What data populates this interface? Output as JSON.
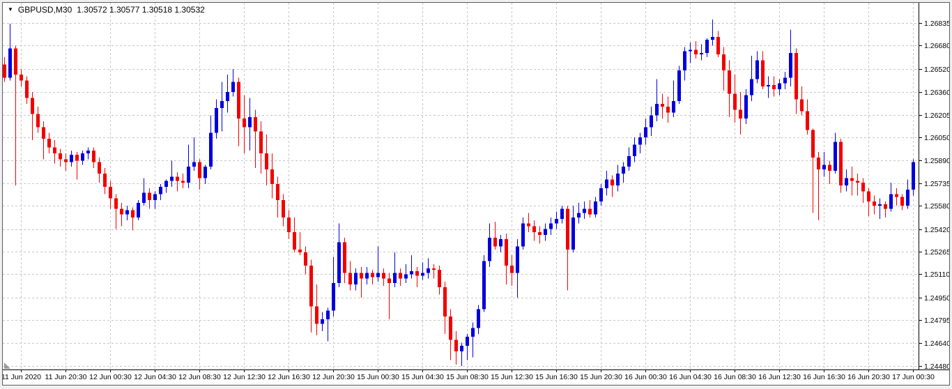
{
  "window": {
    "dropdown_icon": "▼",
    "symbol_period": "GBPUSD,M30",
    "ohlc_text": "1.30572 1.30577 1.30518 1.30532"
  },
  "colors": {
    "bull": "#0000dd",
    "bear": "#f20000",
    "grid": "#c6c6c6",
    "axis_line": "#000000",
    "text": "#000000",
    "background": "#ffffff",
    "frame": "#f0f0f0",
    "frame_border": "#5a5a5a",
    "shift_marker": "#9a9a9a"
  },
  "chart_data": {
    "type": "candlestick",
    "title": "GBPUSD,M30",
    "symbol": "GBPUSD",
    "timeframe": "M30",
    "legend_position": "none",
    "grid": "dashed",
    "y_axis": {
      "top_price": 1.26835,
      "bottom_price": 1.2448,
      "labels": [
        "1.26835",
        "1.26680",
        "1.26520",
        "1.26360",
        "1.26205",
        "1.26050",
        "1.25890",
        "1.25735",
        "1.25580",
        "1.25420",
        "1.25265",
        "1.25110",
        "1.24950",
        "1.24795",
        "1.24640",
        "1.24480"
      ]
    },
    "x_axis": {
      "labels": [
        "11 Jun 2020",
        "11 Jun 20:30",
        "12 Jun 00:30",
        "12 Jun 04:30",
        "12 Jun 08:30",
        "12 Jun 12:30",
        "12 Jun 16:30",
        "12 Jun 20:30",
        "15 Jun 00:30",
        "15 Jun 04:30",
        "15 Jun 08:30",
        "15 Jun 12:30",
        "15 Jun 16:30",
        "15 Jun 20:30",
        "16 Jun 00:30",
        "16 Jun 04:30",
        "16 Jun 08:30",
        "16 Jun 12:30",
        "16 Jun 16:30",
        "16 Jun 20:30",
        "17 Jun 00:30"
      ],
      "first_label_bar_index": 3,
      "bars_per_label": 8
    },
    "candles": [
      [
        1.2655,
        1.266,
        1.2643,
        1.2646
      ],
      [
        1.2646,
        1.2683,
        1.2644,
        1.2666
      ],
      [
        1.2666,
        1.2668,
        1.2572,
        1.2648
      ],
      [
        1.2648,
        1.2652,
        1.264,
        1.2644
      ],
      [
        1.2644,
        1.2647,
        1.2628,
        1.2632
      ],
      [
        1.2632,
        1.2636,
        1.2603,
        1.2621
      ],
      [
        1.2621,
        1.2626,
        1.2608,
        1.2612
      ],
      [
        1.2612,
        1.2616,
        1.259,
        1.2604
      ],
      [
        1.2604,
        1.2608,
        1.2594,
        1.2598
      ],
      [
        1.2598,
        1.2603,
        1.2587,
        1.2594
      ],
      [
        1.2594,
        1.2597,
        1.2585,
        1.259
      ],
      [
        1.259,
        1.2594,
        1.2582,
        1.2588
      ],
      [
        1.2588,
        1.2596,
        1.2585,
        1.2593
      ],
      [
        1.2593,
        1.2595,
        1.2576,
        1.2589
      ],
      [
        1.2589,
        1.2596,
        1.2586,
        1.2594
      ],
      [
        1.2594,
        1.2598,
        1.259,
        1.2596
      ],
      [
        1.2596,
        1.2598,
        1.2584,
        1.2588
      ],
      [
        1.2588,
        1.2591,
        1.2574,
        1.258
      ],
      [
        1.258,
        1.2584,
        1.2566,
        1.2571
      ],
      [
        1.2571,
        1.2575,
        1.2556,
        1.2563
      ],
      [
        1.2563,
        1.2566,
        1.2542,
        1.2556
      ],
      [
        1.2556,
        1.256,
        1.2544,
        1.2552
      ],
      [
        1.2552,
        1.2558,
        1.2548,
        1.2555
      ],
      [
        1.2555,
        1.2557,
        1.2541,
        1.255
      ],
      [
        1.255,
        1.2562,
        1.2548,
        1.256
      ],
      [
        1.256,
        1.2577,
        1.2558,
        1.2567
      ],
      [
        1.2567,
        1.257,
        1.2556,
        1.2562
      ],
      [
        1.2562,
        1.2568,
        1.2556,
        1.2566
      ],
      [
        1.2566,
        1.2573,
        1.2562,
        1.2571
      ],
      [
        1.2571,
        1.2576,
        1.2567,
        1.2575
      ],
      [
        1.2575,
        1.2589,
        1.2571,
        1.2578
      ],
      [
        1.2578,
        1.2581,
        1.2568,
        1.2575
      ],
      [
        1.2575,
        1.258,
        1.257,
        1.2574
      ],
      [
        1.2574,
        1.26,
        1.257,
        1.2585
      ],
      [
        1.2585,
        1.2605,
        1.2582,
        1.2588
      ],
      [
        1.2588,
        1.259,
        1.2569,
        1.2577
      ],
      [
        1.2577,
        1.2586,
        1.2573,
        1.2585
      ],
      [
        1.2585,
        1.262,
        1.2583,
        1.2608
      ],
      [
        1.2608,
        1.2631,
        1.2604,
        1.2625
      ],
      [
        1.2625,
        1.2643,
        1.2609,
        1.263
      ],
      [
        1.263,
        1.2648,
        1.2622,
        1.2636
      ],
      [
        1.2636,
        1.2652,
        1.2633,
        1.2643
      ],
      [
        1.2643,
        1.2646,
        1.2599,
        1.2618
      ],
      [
        1.2618,
        1.2634,
        1.2594,
        1.2612
      ],
      [
        1.2612,
        1.2632,
        1.2596,
        1.2619
      ],
      [
        1.2619,
        1.2624,
        1.2584,
        1.2609
      ],
      [
        1.2609,
        1.2616,
        1.258,
        1.2594
      ],
      [
        1.2594,
        1.2607,
        1.2572,
        1.2583
      ],
      [
        1.2583,
        1.2594,
        1.2563,
        1.2573
      ],
      [
        1.2573,
        1.2578,
        1.255,
        1.2562
      ],
      [
        1.2562,
        1.2566,
        1.2544,
        1.255
      ],
      [
        1.255,
        1.2555,
        1.2535,
        1.254
      ],
      [
        1.254,
        1.255,
        1.2526,
        1.2528
      ],
      [
        1.2528,
        1.254,
        1.2524,
        1.2526
      ],
      [
        1.2526,
        1.253,
        1.2511,
        1.2517
      ],
      [
        1.2517,
        1.2521,
        1.2471,
        1.2489
      ],
      [
        1.2489,
        1.2504,
        1.2469,
        1.2477
      ],
      [
        1.2477,
        1.2485,
        1.2472,
        1.248
      ],
      [
        1.248,
        1.2488,
        1.2465,
        1.2486
      ],
      [
        1.2486,
        1.2523,
        1.2482,
        1.2505
      ],
      [
        1.2505,
        1.2546,
        1.2502,
        1.2533
      ],
      [
        1.2533,
        1.2536,
        1.2505,
        1.2512
      ],
      [
        1.2512,
        1.252,
        1.25,
        1.2504
      ],
      [
        1.2504,
        1.2515,
        1.25,
        1.2512
      ],
      [
        1.2512,
        1.2516,
        1.2495,
        1.2508
      ],
      [
        1.2508,
        1.2516,
        1.2504,
        1.2512
      ],
      [
        1.2512,
        1.2514,
        1.2504,
        1.2509
      ],
      [
        1.2509,
        1.253,
        1.2506,
        1.2512
      ],
      [
        1.2512,
        1.2515,
        1.2503,
        1.2508
      ],
      [
        1.2508,
        1.2512,
        1.248,
        1.2505
      ],
      [
        1.2505,
        1.2526,
        1.2502,
        1.2512
      ],
      [
        1.2512,
        1.2515,
        1.2503,
        1.2508
      ],
      [
        1.2508,
        1.2518,
        1.2505,
        1.2511
      ],
      [
        1.2511,
        1.2524,
        1.2508,
        1.2513
      ],
      [
        1.2513,
        1.2516,
        1.2502,
        1.251
      ],
      [
        1.251,
        1.2519,
        1.2507,
        1.2512
      ],
      [
        1.2512,
        1.2522,
        1.2508,
        1.2515
      ],
      [
        1.2515,
        1.2518,
        1.2508,
        1.2514
      ],
      [
        1.2514,
        1.2517,
        1.2497,
        1.2502
      ],
      [
        1.2502,
        1.2506,
        1.247,
        1.2482
      ],
      [
        1.2482,
        1.2487,
        1.2452,
        1.2466
      ],
      [
        1.2466,
        1.2472,
        1.2449,
        1.2458
      ],
      [
        1.2458,
        1.2464,
        1.2448,
        1.2462
      ],
      [
        1.2462,
        1.247,
        1.2452,
        1.2468
      ],
      [
        1.2468,
        1.2478,
        1.2454,
        1.2474
      ],
      [
        1.2474,
        1.249,
        1.247,
        1.2487
      ],
      [
        1.2487,
        1.2524,
        1.2485,
        1.252
      ],
      [
        1.252,
        1.2546,
        1.2516,
        1.2536
      ],
      [
        1.2536,
        1.2547,
        1.2528,
        1.253
      ],
      [
        1.253,
        1.2538,
        1.2526,
        1.2535
      ],
      [
        1.2535,
        1.2539,
        1.2504,
        1.2517
      ],
      [
        1.2517,
        1.2524,
        1.2503,
        1.2512
      ],
      [
        1.2512,
        1.2535,
        1.2495,
        1.253
      ],
      [
        1.253,
        1.255,
        1.2528,
        1.2546
      ],
      [
        1.2546,
        1.2553,
        1.254,
        1.2544
      ],
      [
        1.2544,
        1.2548,
        1.2534,
        1.254
      ],
      [
        1.254,
        1.2544,
        1.2532,
        1.2538
      ],
      [
        1.2538,
        1.2546,
        1.2534,
        1.2542
      ],
      [
        1.2542,
        1.255,
        1.2538,
        1.2546
      ],
      [
        1.2546,
        1.2554,
        1.2542,
        1.2549
      ],
      [
        1.2549,
        1.2558,
        1.2546,
        1.2556
      ],
      [
        1.2556,
        1.2558,
        1.25,
        1.2528
      ],
      [
        1.2528,
        1.2558,
        1.2526,
        1.255
      ],
      [
        1.255,
        1.256,
        1.2546,
        1.2553
      ],
      [
        1.2553,
        1.2561,
        1.2549,
        1.2556
      ],
      [
        1.2556,
        1.2562,
        1.255,
        1.2552
      ],
      [
        1.2552,
        1.2564,
        1.255,
        1.2561
      ],
      [
        1.2561,
        1.2573,
        1.2558,
        1.257
      ],
      [
        1.257,
        1.2582,
        1.2565,
        1.2576
      ],
      [
        1.2576,
        1.2579,
        1.2564,
        1.2572
      ],
      [
        1.2572,
        1.2586,
        1.2568,
        1.258
      ],
      [
        1.258,
        1.2588,
        1.2574,
        1.2585
      ],
      [
        1.2585,
        1.2598,
        1.2582,
        1.2592
      ],
      [
        1.2592,
        1.2605,
        1.2588,
        1.26
      ],
      [
        1.26,
        1.2608,
        1.2594,
        1.2605
      ],
      [
        1.2605,
        1.2618,
        1.26,
        1.2612
      ],
      [
        1.2612,
        1.2626,
        1.2606,
        1.262
      ],
      [
        1.262,
        1.2645,
        1.2616,
        1.2628
      ],
      [
        1.2628,
        1.2635,
        1.2618,
        1.2626
      ],
      [
        1.2626,
        1.2633,
        1.2615,
        1.2622
      ],
      [
        1.2622,
        1.2644,
        1.2619,
        1.263
      ],
      [
        1.263,
        1.2654,
        1.2628,
        1.2651
      ],
      [
        1.2651,
        1.2667,
        1.2644,
        1.2664
      ],
      [
        1.2664,
        1.267,
        1.2656,
        1.2665
      ],
      [
        1.2665,
        1.2671,
        1.2659,
        1.2662
      ],
      [
        1.2662,
        1.2669,
        1.2658,
        1.2663
      ],
      [
        1.2663,
        1.2673,
        1.266,
        1.2672
      ],
      [
        1.2672,
        1.2686,
        1.2668,
        1.2674
      ],
      [
        1.2674,
        1.2678,
        1.266,
        1.2662
      ],
      [
        1.2662,
        1.2667,
        1.2637,
        1.2651
      ],
      [
        1.2651,
        1.2658,
        1.2619,
        1.2635
      ],
      [
        1.2635,
        1.2648,
        1.2615,
        1.2624
      ],
      [
        1.2624,
        1.2636,
        1.2607,
        1.2618
      ],
      [
        1.2618,
        1.2638,
        1.2614,
        1.2634
      ],
      [
        1.2634,
        1.2661,
        1.263,
        1.2645
      ],
      [
        1.2645,
        1.2664,
        1.2642,
        1.2658
      ],
      [
        1.2658,
        1.2664,
        1.2638,
        1.264
      ],
      [
        1.264,
        1.2647,
        1.2632,
        1.2641
      ],
      [
        1.2641,
        1.2647,
        1.2633,
        1.2638
      ],
      [
        1.2638,
        1.2645,
        1.2634,
        1.2642
      ],
      [
        1.2642,
        1.265,
        1.2638,
        1.2646
      ],
      [
        1.2646,
        1.2679,
        1.264,
        1.2663
      ],
      [
        1.2663,
        1.2666,
        1.2621,
        1.2631
      ],
      [
        1.2631,
        1.264,
        1.262,
        1.2623
      ],
      [
        1.2623,
        1.2631,
        1.2607,
        1.261
      ],
      [
        1.261,
        1.2611,
        1.2553,
        1.2591
      ],
      [
        1.2591,
        1.2595,
        1.2548,
        1.2583
      ],
      [
        1.2583,
        1.2595,
        1.2578,
        1.2586
      ],
      [
        1.2586,
        1.2589,
        1.2573,
        1.2582
      ],
      [
        1.2582,
        1.2608,
        1.258,
        1.2602
      ],
      [
        1.2602,
        1.2604,
        1.2567,
        1.2572
      ],
      [
        1.2572,
        1.2583,
        1.2568,
        1.2577
      ],
      [
        1.2577,
        1.2585,
        1.2565,
        1.2575
      ],
      [
        1.2575,
        1.258,
        1.2565,
        1.2574
      ],
      [
        1.2574,
        1.2577,
        1.256,
        1.2568
      ],
      [
        1.2568,
        1.257,
        1.2551,
        1.2561
      ],
      [
        1.2561,
        1.2565,
        1.2552,
        1.2558
      ],
      [
        1.2558,
        1.2563,
        1.2549,
        1.2559
      ],
      [
        1.2559,
        1.2561,
        1.255,
        1.2556
      ],
      [
        1.2556,
        1.2574,
        1.2554,
        1.2566
      ],
      [
        1.2566,
        1.257,
        1.2558,
        1.2564
      ],
      [
        1.2564,
        1.2566,
        1.2555,
        1.2558
      ],
      [
        1.2558,
        1.2576,
        1.2556,
        1.2569
      ],
      [
        1.2569,
        1.259,
        1.2565,
        1.2588
      ]
    ]
  }
}
